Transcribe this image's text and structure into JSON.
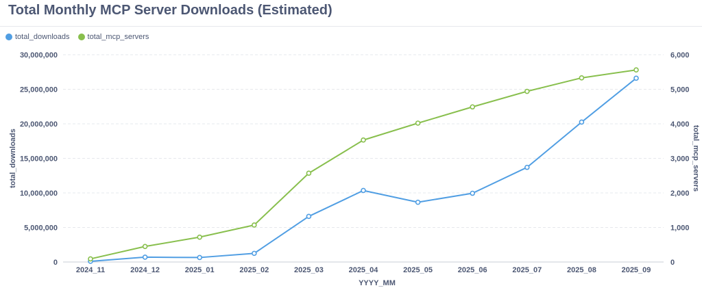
{
  "page": {
    "title": "Total Monthly MCP Server Downloads (Estimated)"
  },
  "colors": {
    "downloads": "#509ee3",
    "servers": "#88bf4d",
    "grid": "#e6e8ec",
    "text": "#4c5773"
  },
  "chart_data": {
    "type": "line",
    "title": "Total Monthly MCP Server Downloads (Estimated)",
    "xlabel": "YYYY_MM",
    "ylabel": "total_downloads",
    "ylabel_right": "total_mcp_servers",
    "categories": [
      "2024_11",
      "2024_12",
      "2025_01",
      "2025_02",
      "2025_03",
      "2025_04",
      "2025_05",
      "2025_06",
      "2025_07",
      "2025_08",
      "2025_09"
    ],
    "series": [
      {
        "name": "total_downloads",
        "axis": "left",
        "color": "#509ee3",
        "values": [
          100000,
          700000,
          650000,
          1250000,
          6600000,
          10350000,
          8650000,
          9950000,
          13700000,
          20250000,
          26600000
        ]
      },
      {
        "name": "total_mcp_servers",
        "axis": "right",
        "color": "#88bf4d",
        "values": [
          90,
          450,
          720,
          1070,
          2570,
          3530,
          4020,
          4490,
          4940,
          5330,
          5560
        ]
      }
    ],
    "ylim": [
      0,
      30000000
    ],
    "ylim_right": [
      0,
      6000
    ],
    "yticks": [
      "0",
      "5,000,000",
      "10,000,000",
      "15,000,000",
      "20,000,000",
      "25,000,000",
      "30,000,000"
    ],
    "yticks_right": [
      "0",
      "1,000",
      "2,000",
      "3,000",
      "4,000",
      "5,000",
      "6,000"
    ],
    "grid": true,
    "legend": "top-left"
  }
}
